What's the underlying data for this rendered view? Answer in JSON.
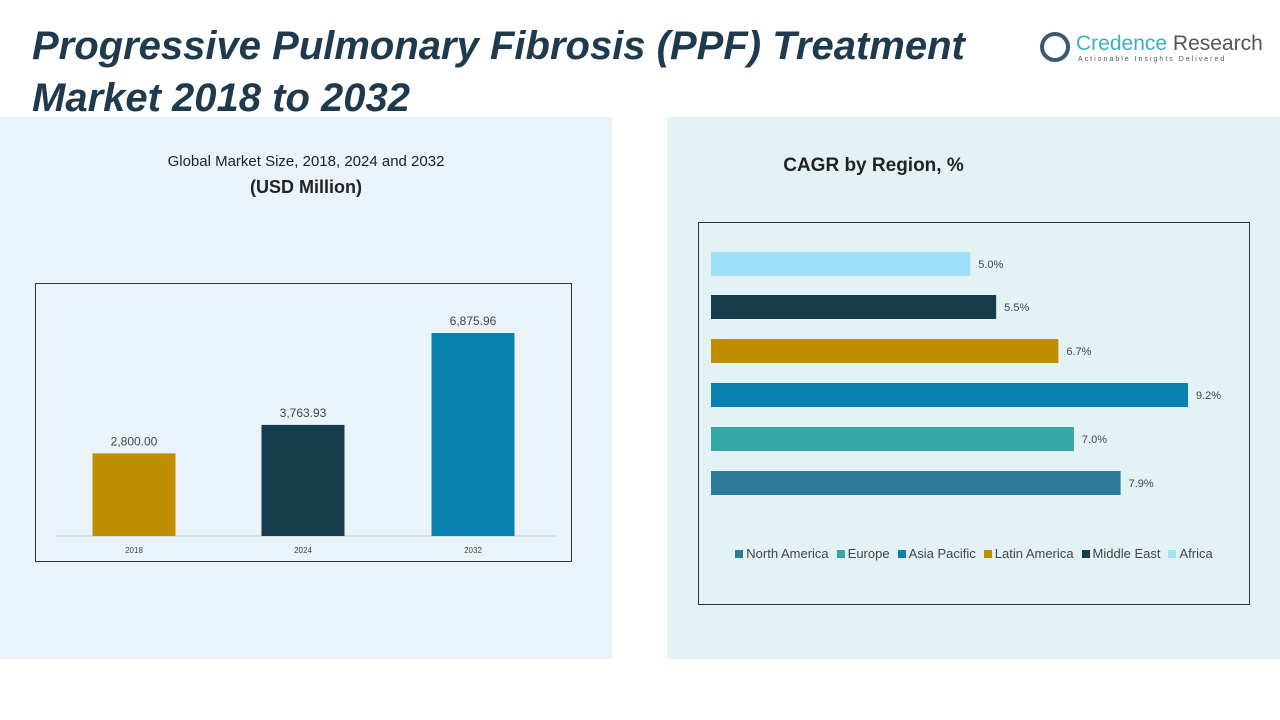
{
  "title": "Progressive Pulmonary Fibrosis (PPF) Treatment Market 2018 to 2032",
  "logo": {
    "name_part1": "Credence",
    "name_part2": " Research",
    "tagline": "Actionable Insights Delivered"
  },
  "chart_data": [
    {
      "type": "bar",
      "title": "Global Market Size, 2018, 2024 and 2032",
      "subtitle": "(USD Million)",
      "categories": [
        "2018",
        "2024",
        "2032"
      ],
      "values": [
        2800.0,
        3763.93,
        6875.96
      ],
      "labels": [
        "2,800.00",
        "3,763.93",
        "6,875.96"
      ],
      "colors": [
        "#bf8f00",
        "#173d4d",
        "#0a80b0"
      ],
      "ylim": [
        0,
        8300
      ]
    },
    {
      "type": "bar",
      "orientation": "horizontal",
      "title": "CAGR by Region, %",
      "categories": [
        "Africa",
        "Middle East",
        "Latin America",
        "Asia Pacific",
        "Europe",
        "North America"
      ],
      "values": [
        5.0,
        5.5,
        6.7,
        9.2,
        7.0,
        7.9
      ],
      "labels": [
        "5.0%",
        "5.5%",
        "6.7%",
        "9.2%",
        "7.0%",
        "7.9%"
      ],
      "colors": [
        "#9ee0f8",
        "#173d4d",
        "#bf8f00",
        "#0a80b0",
        "#35a8a6",
        "#2e7a9a"
      ],
      "xlim": [
        0,
        9.2
      ],
      "legend": [
        {
          "name": "North America",
          "color": "#2e7a9a"
        },
        {
          "name": "Europe",
          "color": "#35a8a6"
        },
        {
          "name": "Asia Pacific",
          "color": "#0a80b0"
        },
        {
          "name": "Latin America",
          "color": "#bf8f00"
        },
        {
          "name": "Middle East",
          "color": "#173d4d"
        },
        {
          "name": "Africa",
          "color": "#9ee0f8"
        }
      ],
      "legend_position": "bottom"
    }
  ]
}
